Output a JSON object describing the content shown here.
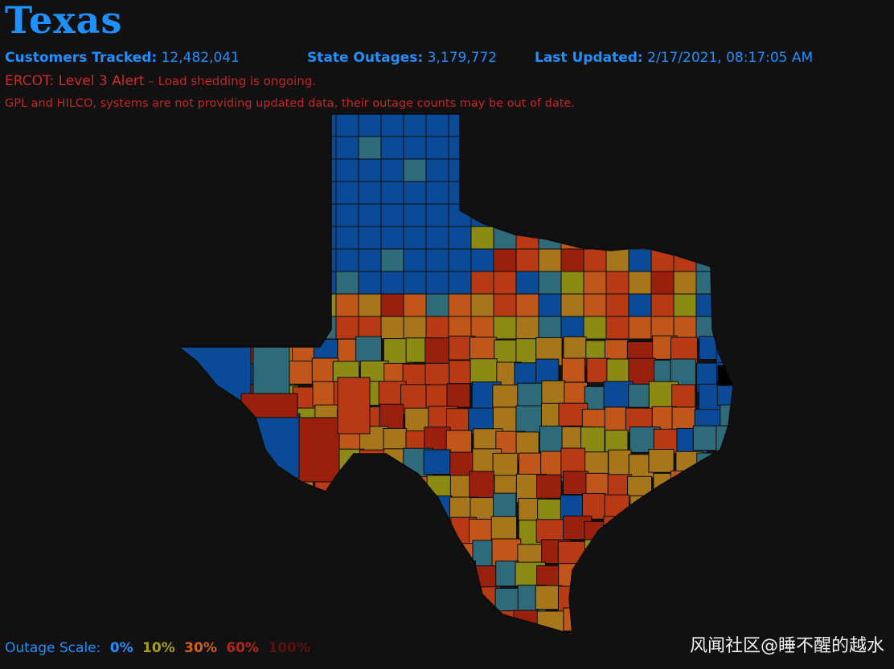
{
  "header": {
    "title": "Texas",
    "customers_label": "Customers Tracked:",
    "customers_value": "12,482,041",
    "outages_label": "State Outages:",
    "outages_value": "3,179,772",
    "updated_label": "Last Updated:",
    "updated_value": "2/17/2021, 08:17:05 AM"
  },
  "alerts": {
    "ercot": "ERCOT: Level 3 Alert",
    "ercot_sub": " – Load shedding is ongoing.",
    "notice": "GPL and HILCO, systems are not providing updated data, their outage counts may be out of date."
  },
  "legend": {
    "label": "Outage Scale:",
    "steps": [
      {
        "text": "0%",
        "color": "#1e90ff"
      },
      {
        "text": "10%",
        "color": "#a8a01c"
      },
      {
        "text": "30%",
        "color": "#d2601a"
      },
      {
        "text": "60%",
        "color": "#b3261a"
      },
      {
        "text": "100%",
        "color": "#5a1010"
      }
    ]
  },
  "map": {
    "region": "Texas",
    "palette": {
      "p0": "#0a4a96",
      "p5": "#2f6a7a",
      "p10": "#8a8a14",
      "p20": "#a8761a",
      "p30": "#c0561a",
      "p45": "#b83a14",
      "p60": "#9a200e",
      "p100": "#000000"
    }
  },
  "watermark": "风闻社区@睡不醒的越水"
}
